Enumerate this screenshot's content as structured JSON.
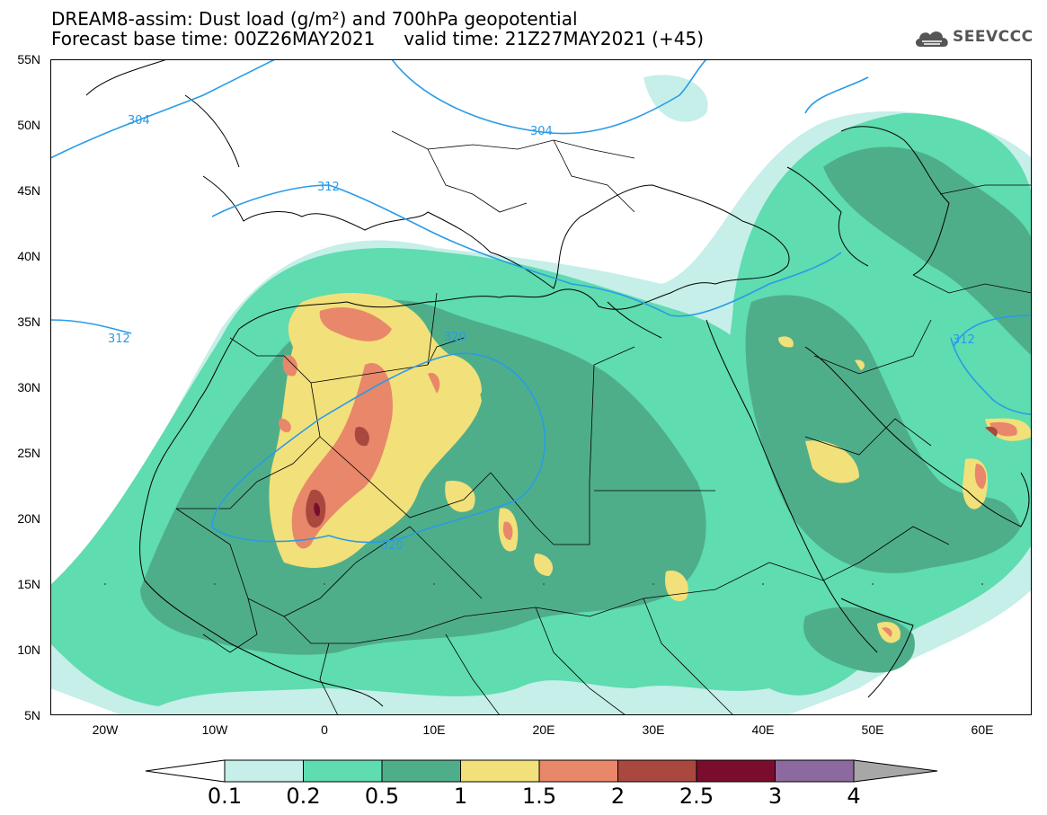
{
  "header": {
    "title_line1": "DREAM8-assim: Dust load (g/m²) and 700hPa geopotential",
    "title_line2": "Forecast base time: 00Z26MAY2021     valid time: 21Z27MAY2021 (+45)"
  },
  "logo": {
    "text": "SEEVCCC",
    "icon": "cloud-icon"
  },
  "map": {
    "lat_labels": [
      "55N",
      "50N",
      "45N",
      "40N",
      "35N",
      "30N",
      "25N",
      "20N",
      "15N",
      "10N",
      "5N"
    ],
    "lon_labels": [
      "20W",
      "10W",
      "0",
      "10E",
      "20E",
      "30E",
      "40E",
      "50E",
      "60E"
    ],
    "contour_labels": [
      "304",
      "304",
      "312",
      "312",
      "312",
      "320",
      "320"
    ]
  },
  "colorbar": {
    "levels": [
      "0.1",
      "0.2",
      "0.5",
      "1",
      "1.5",
      "2",
      "2.5",
      "3",
      "4"
    ],
    "colors": [
      "#c5efe8",
      "#5fdcb0",
      "#4fae8a",
      "#f2e07a",
      "#e8876a",
      "#a9483f",
      "#7a0d2e",
      "#8c6aa0"
    ],
    "under_color": "#ffffff",
    "over_color": "#a7a7a7"
  }
}
